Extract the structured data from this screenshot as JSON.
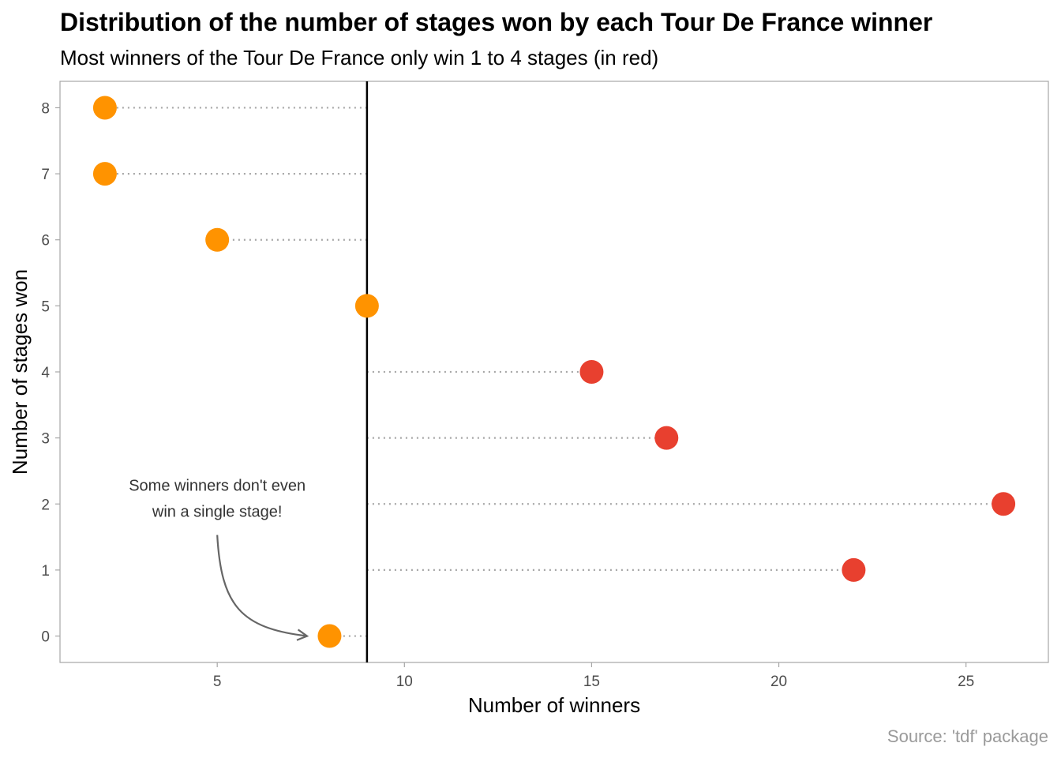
{
  "chart_data": {
    "type": "scatter",
    "title": "Distribution of the number of stages won by each Tour De France winner",
    "subtitle": "Most winners of the Tour De France only win 1 to 4 stages (in red)",
    "xlabel": "Number of winners",
    "ylabel": "Number of stages won",
    "caption": "Source: 'tdf' package",
    "xlim": [
      0.8,
      27.2
    ],
    "ylim": [
      -0.4,
      8.4
    ],
    "x_ticks": [
      5,
      10,
      15,
      20,
      25
    ],
    "y_ticks": [
      0,
      1,
      2,
      3,
      4,
      5,
      6,
      7,
      8
    ],
    "reference_line_x": 9,
    "grid": false,
    "colors": {
      "highlight": "#e8402f",
      "other": "#ff9300",
      "segment": "#a6a6a6",
      "reference": "#000000",
      "arrow": "#666666"
    },
    "points": [
      {
        "stages": 0,
        "winners": 8,
        "highlight": false
      },
      {
        "stages": 1,
        "winners": 22,
        "highlight": true
      },
      {
        "stages": 2,
        "winners": 26,
        "highlight": true
      },
      {
        "stages": 3,
        "winners": 17,
        "highlight": true
      },
      {
        "stages": 4,
        "winners": 15,
        "highlight": true
      },
      {
        "stages": 5,
        "winners": 9,
        "highlight": false
      },
      {
        "stages": 6,
        "winners": 5,
        "highlight": false
      },
      {
        "stages": 7,
        "winners": 2,
        "highlight": false
      },
      {
        "stages": 8,
        "winners": 2,
        "highlight": false
      }
    ],
    "annotation": {
      "lines": [
        "Some winners don't even",
        "win a single stage!"
      ],
      "text_anchor": {
        "x": 5,
        "y": 2.2
      },
      "arrow_to": {
        "x": 7.4,
        "y": 0
      }
    }
  }
}
